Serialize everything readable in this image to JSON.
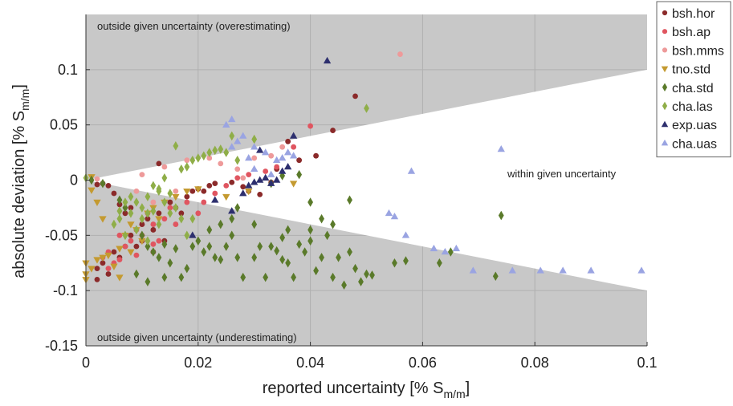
{
  "chart_data": {
    "type": "scatter",
    "xlabel": "reported uncertainty [% S",
    "xlabel_sub": "m/m",
    "xlabel_close": "]",
    "ylabel": "absolute deviation [% S",
    "ylabel_sub": "m/m",
    "ylabel_close": "]",
    "xlim": [
      0,
      0.1
    ],
    "ylim": [
      -0.15,
      0.15
    ],
    "x_ticks": [
      0,
      0.02,
      0.04,
      0.06,
      0.08,
      0.1
    ],
    "x_tick_labels": [
      "0",
      "0.02",
      "0.04",
      "0.06",
      "0.08",
      "0.1"
    ],
    "y_ticks": [
      -0.15,
      -0.1,
      -0.05,
      0,
      0.05,
      0.1
    ],
    "y_tick_labels": [
      "-0.15",
      "-0.1",
      "-0.05",
      "0",
      "0.05",
      "0.1"
    ],
    "grid": true,
    "legend_position": "outside-top-right",
    "annotations": {
      "over": "outside given uncertainty (overestimating)",
      "within": "within given uncertainty",
      "under": "outside given uncertainty (underestimating)"
    },
    "series": [
      {
        "name": "bsh.hor",
        "marker": "circle",
        "color": "#8b2a2a",
        "points": [
          [
            0.002,
            -0.004
          ],
          [
            0.003,
            -0.003
          ],
          [
            0.004,
            -0.005
          ],
          [
            0.005,
            -0.012
          ],
          [
            0.006,
            -0.022
          ],
          [
            0.007,
            -0.03
          ],
          [
            0.008,
            -0.025
          ],
          [
            0.009,
            -0.06
          ],
          [
            0.01,
            -0.04
          ],
          [
            0.011,
            -0.035
          ],
          [
            0.012,
            -0.045
          ],
          [
            0.013,
            -0.03
          ],
          [
            0.014,
            -0.055
          ],
          [
            0.015,
            -0.02
          ],
          [
            0.016,
            -0.025
          ],
          [
            0.017,
            -0.03
          ],
          [
            0.018,
            -0.015
          ],
          [
            0.019,
            -0.01
          ],
          [
            0.02,
            -0.008
          ],
          [
            0.021,
            -0.01
          ],
          [
            0.022,
            -0.005
          ],
          [
            0.023,
            -0.003
          ],
          [
            0.026,
            -0.002
          ],
          [
            0.028,
            -0.006
          ],
          [
            0.029,
            -0.01
          ],
          [
            0.031,
            -0.013
          ],
          [
            0.033,
            -0.002
          ],
          [
            0.034,
            0.01
          ],
          [
            0.036,
            0.035
          ],
          [
            0.038,
            0.018
          ],
          [
            0.041,
            0.022
          ],
          [
            0.044,
            0.045
          ],
          [
            0.048,
            0.076
          ],
          [
            0.002,
            -0.08
          ],
          [
            0.003,
            -0.075
          ],
          [
            0.004,
            -0.085
          ],
          [
            0.002,
            -0.09
          ],
          [
            0.005,
            -0.065
          ],
          [
            0.006,
            -0.07
          ],
          [
            0.007,
            -0.06
          ],
          [
            0.008,
            -0.05
          ],
          [
            0.01,
            -0.055
          ],
          [
            0.012,
            -0.065
          ],
          [
            0.013,
            0.015
          ]
        ]
      },
      {
        "name": "bsh.ap",
        "marker": "circle",
        "color": "#e05560",
        "points": [
          [
            0.003,
            -0.07
          ],
          [
            0.004,
            -0.065
          ],
          [
            0.005,
            -0.075
          ],
          [
            0.006,
            -0.05
          ],
          [
            0.007,
            -0.06
          ],
          [
            0.008,
            -0.055
          ],
          [
            0.009,
            -0.045
          ],
          [
            0.01,
            -0.05
          ],
          [
            0.011,
            -0.03
          ],
          [
            0.012,
            -0.04
          ],
          [
            0.013,
            -0.055
          ],
          [
            0.014,
            -0.035
          ],
          [
            0.015,
            -0.025
          ],
          [
            0.016,
            -0.04
          ],
          [
            0.018,
            -0.02
          ],
          [
            0.02,
            -0.03
          ],
          [
            0.021,
            -0.02
          ],
          [
            0.023,
            -0.012
          ],
          [
            0.025,
            -0.005
          ],
          [
            0.027,
            0.002
          ],
          [
            0.029,
            0.005
          ],
          [
            0.032,
            0.008
          ],
          [
            0.034,
            0.012
          ],
          [
            0.037,
            0.03
          ],
          [
            0.04,
            0.049
          ],
          [
            0.004,
            -0.08
          ],
          [
            0.006,
            -0.072
          ],
          [
            0.009,
            -0.068
          ],
          [
            0.012,
            -0.058
          ]
        ]
      },
      {
        "name": "bsh.mms",
        "marker": "circle",
        "color": "#ee9a9a",
        "points": [
          [
            0.002,
            0.001
          ],
          [
            0.01,
            0.005
          ],
          [
            0.014,
            0.012
          ],
          [
            0.018,
            0.018
          ],
          [
            0.022,
            0.02
          ],
          [
            0.024,
            0.015
          ],
          [
            0.027,
            0.01
          ],
          [
            0.03,
            0.02
          ],
          [
            0.033,
            0.022
          ],
          [
            0.035,
            0.03
          ],
          [
            0.028,
            0.002
          ],
          [
            0.016,
            -0.01
          ],
          [
            0.012,
            -0.02
          ],
          [
            0.009,
            -0.01
          ],
          [
            0.056,
            0.114
          ]
        ]
      },
      {
        "name": "tno.std",
        "marker": "triangle-down",
        "color": "#c49a30",
        "points": [
          [
            0,
            -0.075
          ],
          [
            0,
            -0.085
          ],
          [
            0,
            -0.09
          ],
          [
            0.001,
            -0.08
          ],
          [
            0.002,
            -0.072
          ],
          [
            0.003,
            -0.07
          ],
          [
            0.004,
            -0.068
          ],
          [
            0.005,
            -0.078
          ],
          [
            0.006,
            -0.088
          ],
          [
            0.007,
            -0.05
          ],
          [
            0.008,
            -0.04
          ],
          [
            0.009,
            -0.045
          ],
          [
            0.01,
            -0.055
          ],
          [
            0.011,
            -0.03
          ],
          [
            0.012,
            -0.025
          ],
          [
            0.013,
            -0.035
          ],
          [
            0.014,
            -0.02
          ],
          [
            0.016,
            -0.015
          ],
          [
            0.018,
            -0.01
          ],
          [
            0.02,
            -0.008
          ],
          [
            0.025,
            -0.015
          ],
          [
            0.029,
            -0.01
          ],
          [
            0.037,
            -0.003
          ],
          [
            0.002,
            -0.02
          ],
          [
            0.003,
            -0.035
          ],
          [
            0.006,
            -0.062
          ],
          [
            0.008,
            -0.065
          ],
          [
            0.001,
            -0.009
          ],
          [
            0.001,
            0.003
          ]
        ]
      },
      {
        "name": "cha.std",
        "marker": "diamond",
        "color": "#5a7a2a",
        "points": [
          [
            0.001,
            0
          ],
          [
            0.003,
            -0.003
          ],
          [
            0.006,
            -0.018
          ],
          [
            0.007,
            -0.025
          ],
          [
            0.01,
            -0.05
          ],
          [
            0.011,
            -0.06
          ],
          [
            0.012,
            -0.065
          ],
          [
            0.013,
            -0.07
          ],
          [
            0.014,
            -0.058
          ],
          [
            0.015,
            -0.075
          ],
          [
            0.016,
            -0.062
          ],
          [
            0.017,
            -0.088
          ],
          [
            0.018,
            -0.08
          ],
          [
            0.019,
            -0.06
          ],
          [
            0.02,
            -0.055
          ],
          [
            0.021,
            -0.065
          ],
          [
            0.022,
            -0.06
          ],
          [
            0.023,
            -0.07
          ],
          [
            0.024,
            -0.072
          ],
          [
            0.025,
            -0.06
          ],
          [
            0.026,
            -0.05
          ],
          [
            0.027,
            -0.07
          ],
          [
            0.028,
            -0.088
          ],
          [
            0.03,
            -0.07
          ],
          [
            0.031,
            -0.06
          ],
          [
            0.032,
            -0.088
          ],
          [
            0.033,
            -0.06
          ],
          [
            0.034,
            -0.064
          ],
          [
            0.035,
            -0.072
          ],
          [
            0.036,
            -0.075
          ],
          [
            0.037,
            -0.088
          ],
          [
            0.038,
            -0.058
          ],
          [
            0.039,
            -0.065
          ],
          [
            0.04,
            -0.055
          ],
          [
            0.041,
            -0.082
          ],
          [
            0.042,
            -0.07
          ],
          [
            0.043,
            -0.05
          ],
          [
            0.044,
            -0.088
          ],
          [
            0.045,
            -0.07
          ],
          [
            0.046,
            -0.095
          ],
          [
            0.047,
            -0.065
          ],
          [
            0.048,
            -0.08
          ],
          [
            0.049,
            -0.092
          ],
          [
            0.05,
            -0.085
          ],
          [
            0.051,
            -0.086
          ],
          [
            0.055,
            -0.075
          ],
          [
            0.057,
            -0.073
          ],
          [
            0.063,
            -0.075
          ],
          [
            0.065,
            -0.065
          ],
          [
            0.073,
            -0.087
          ],
          [
            0.074,
            -0.032
          ],
          [
            0.047,
            -0.018
          ],
          [
            0.044,
            -0.04
          ],
          [
            0.042,
            -0.035
          ],
          [
            0.04,
            -0.045
          ],
          [
            0.036,
            -0.045
          ],
          [
            0.035,
            -0.052
          ],
          [
            0.03,
            -0.04
          ],
          [
            0.026,
            -0.035
          ],
          [
            0.024,
            -0.04
          ],
          [
            0.014,
            -0.088
          ],
          [
            0.011,
            -0.092
          ],
          [
            0.009,
            -0.085
          ],
          [
            0.022,
            -0.045
          ],
          [
            0.027,
            -0.025
          ],
          [
            0.033,
            -0.003
          ],
          [
            0.035,
            0.004
          ],
          [
            0.038,
            0.005
          ],
          [
            0.04,
            -0.02
          ]
        ]
      },
      {
        "name": "cha.las",
        "marker": "diamond",
        "color": "#8fae48",
        "points": [
          [
            0,
            0.002
          ],
          [
            0.005,
            -0.04
          ],
          [
            0.006,
            -0.035
          ],
          [
            0.007,
            -0.05
          ],
          [
            0.008,
            -0.03
          ],
          [
            0.009,
            -0.02
          ],
          [
            0.01,
            -0.025
          ],
          [
            0.011,
            -0.015
          ],
          [
            0.012,
            -0.005
          ],
          [
            0.013,
            -0.01
          ],
          [
            0.014,
            -0.02
          ],
          [
            0.015,
            -0.03
          ],
          [
            0.016,
            0.031
          ],
          [
            0.017,
            0.01
          ],
          [
            0.018,
            0.012
          ],
          [
            0.019,
            0.018
          ],
          [
            0.02,
            0.02
          ],
          [
            0.021,
            0.022
          ],
          [
            0.022,
            0.025
          ],
          [
            0.023,
            0.027
          ],
          [
            0.024,
            0.028
          ],
          [
            0.025,
            0.025
          ],
          [
            0.026,
            0.04
          ],
          [
            0.027,
            0.018
          ],
          [
            0.03,
            0.037
          ],
          [
            0.05,
            0.065
          ],
          [
            0.009,
            -0.045
          ],
          [
            0.011,
            -0.055
          ],
          [
            0.012,
            -0.028
          ],
          [
            0.013,
            -0.008
          ],
          [
            0.014,
            0.002
          ],
          [
            0.015,
            -0.012
          ],
          [
            0.016,
            -0.025
          ],
          [
            0.017,
            -0.035
          ],
          [
            0.018,
            -0.05
          ],
          [
            0.019,
            -0.035
          ],
          [
            0.008,
            -0.015
          ],
          [
            0.007,
            -0.02
          ],
          [
            0.006,
            -0.028
          ],
          [
            0.01,
            -0.035
          ],
          [
            0.013,
            -0.04
          ],
          [
            0.011,
            -0.03
          ]
        ]
      },
      {
        "name": "exp.uas",
        "marker": "triangle-up",
        "color": "#2d2f6e",
        "points": [
          [
            0.019,
            -0.05
          ],
          [
            0.023,
            -0.018
          ],
          [
            0.026,
            -0.028
          ],
          [
            0.028,
            -0.012
          ],
          [
            0.029,
            -0.005
          ],
          [
            0.03,
            -0.002
          ],
          [
            0.031,
            0
          ],
          [
            0.032,
            0.002
          ],
          [
            0.033,
            -0.003
          ],
          [
            0.034,
            0
          ],
          [
            0.035,
            0.008
          ],
          [
            0.036,
            0.012
          ],
          [
            0.037,
            0.04
          ],
          [
            0.031,
            0.027
          ],
          [
            0.043,
            0.108
          ]
        ]
      },
      {
        "name": "cha.uas",
        "marker": "triangle-up",
        "color": "#9aa4e2",
        "points": [
          [
            0.025,
            0.05
          ],
          [
            0.026,
            0.055
          ],
          [
            0.026,
            0.03
          ],
          [
            0.027,
            0.035
          ],
          [
            0.028,
            0.04
          ],
          [
            0.029,
            0.02
          ],
          [
            0.03,
            0.03
          ],
          [
            0.032,
            0.025
          ],
          [
            0.034,
            0.018
          ],
          [
            0.035,
            0.02
          ],
          [
            0.036,
            0.025
          ],
          [
            0.037,
            0.022
          ],
          [
            0.03,
            0.01
          ],
          [
            0.033,
            0.005
          ],
          [
            0.054,
            -0.03
          ],
          [
            0.055,
            -0.033
          ],
          [
            0.057,
            -0.05
          ],
          [
            0.058,
            0.008
          ],
          [
            0.062,
            -0.062
          ],
          [
            0.064,
            -0.065
          ],
          [
            0.066,
            -0.062
          ],
          [
            0.069,
            -0.082
          ],
          [
            0.074,
            0.028
          ],
          [
            0.076,
            -0.082
          ],
          [
            0.081,
            -0.082
          ],
          [
            0.085,
            -0.082
          ],
          [
            0.09,
            -0.082
          ],
          [
            0.099,
            -0.082
          ]
        ]
      }
    ]
  }
}
